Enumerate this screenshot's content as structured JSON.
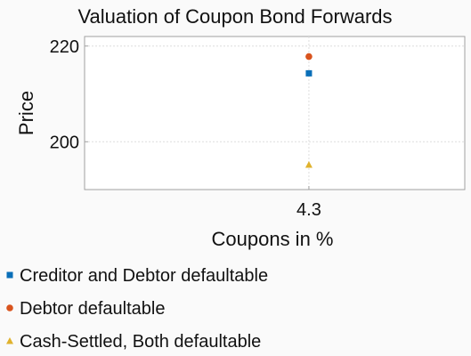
{
  "chart_data": {
    "type": "scatter",
    "title": "Valuation of Coupon Bond Forwards",
    "xlabel": "Coupons in %",
    "ylabel": "Price",
    "categories": [
      "4.3"
    ],
    "x_tick_labels": [
      "4.3"
    ],
    "y_ticks": [
      200,
      220
    ],
    "y_tick_labels": [
      "200",
      "220"
    ],
    "ylim": [
      190,
      222
    ],
    "grid": true,
    "legend_position": "bottom",
    "series": [
      {
        "name": "Creditor and Debtor defaultable",
        "marker": "square",
        "color": "#0a6fb8",
        "x": [
          "4.3"
        ],
        "values": [
          214.3
        ]
      },
      {
        "name": "Debtor defaultable",
        "marker": "circle",
        "color": "#d9541e",
        "x": [
          "4.3"
        ],
        "values": [
          217.8
        ]
      },
      {
        "name": "Cash-Settled, Both defaultable",
        "marker": "triangle",
        "color": "#e0b22d",
        "x": [
          "4.3"
        ],
        "values": [
          195.2
        ]
      }
    ]
  }
}
